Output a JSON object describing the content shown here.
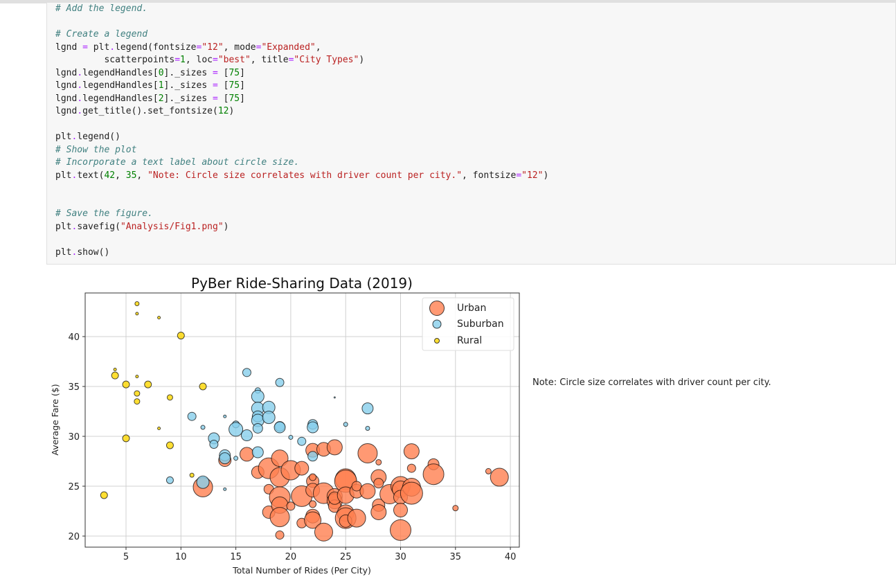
{
  "code_cell": {
    "lines": [
      {
        "type": "comment",
        "text": "# Add the legend."
      },
      {
        "type": "blank",
        "text": ""
      },
      {
        "type": "comment",
        "text": "# Create a legend"
      },
      {
        "type": "code",
        "text": "lgnd = plt.legend(fontsize=\"12\", mode=\"Expanded\","
      },
      {
        "type": "code",
        "text": "         scatterpoints=1, loc=\"best\", title=\"City Types\")"
      },
      {
        "type": "code",
        "text": "lgnd.legendHandles[0]._sizes = [75]"
      },
      {
        "type": "code",
        "text": "lgnd.legendHandles[1]._sizes = [75]"
      },
      {
        "type": "code",
        "text": "lgnd.legendHandles[2]._sizes = [75]"
      },
      {
        "type": "code",
        "text": "lgnd.get_title().set_fontsize(12)"
      },
      {
        "type": "blank",
        "text": ""
      },
      {
        "type": "code",
        "text": "plt.legend()"
      },
      {
        "type": "comment",
        "text": "# Show the plot"
      },
      {
        "type": "comment",
        "text": "# Incorporate a text label about circle size."
      },
      {
        "type": "code",
        "text": "plt.text(42, 35, \"Note: Circle size correlates with driver count per city.\", fontsize=\"12\")"
      },
      {
        "type": "blank",
        "text": ""
      },
      {
        "type": "blank",
        "text": ""
      },
      {
        "type": "comment",
        "text": "# Save the figure."
      },
      {
        "type": "code",
        "text": "plt.savefig(\"Analysis/Fig1.png\")"
      },
      {
        "type": "blank",
        "text": ""
      },
      {
        "type": "code",
        "text": "plt.show()"
      }
    ]
  },
  "note_text": "Note: Circle size correlates with driver count per city.",
  "colors": {
    "urban": "#FF7F50",
    "suburban": "#87CEEB",
    "rural": "#FFD700",
    "edge": "#000000",
    "grid": "#d0d0d0"
  },
  "chart_data": {
    "type": "scatter",
    "title": "PyBer Ride-Sharing Data (2019)",
    "xlabel": "Total Number of Rides (Per City)",
    "ylabel": "Average Fare ($)",
    "xlim": [
      1.3,
      40.8
    ],
    "ylim": [
      19,
      44.5
    ],
    "xticks": [
      5,
      10,
      15,
      20,
      25,
      30,
      35,
      40
    ],
    "yticks": [
      20,
      25,
      30,
      35,
      40
    ],
    "grid": true,
    "legend": {
      "position": "upper right",
      "entries": [
        "Urban",
        "Suburban",
        "Rural"
      ]
    },
    "series": [
      {
        "name": "Urban",
        "color": "#FF7F50",
        "points": [
          [
            12,
            24.9,
            14
          ],
          [
            14,
            27.6,
            9
          ],
          [
            16,
            28.2,
            10
          ],
          [
            17,
            26.4,
            9
          ],
          [
            18,
            26.8,
            15
          ],
          [
            18,
            22.4,
            9
          ],
          [
            18,
            24.7,
            7
          ],
          [
            19,
            27.8,
            12
          ],
          [
            19,
            25.9,
            14
          ],
          [
            19,
            23.9,
            15
          ],
          [
            19,
            23.1,
            12
          ],
          [
            19,
            21.9,
            14
          ],
          [
            19,
            20.1,
            6
          ],
          [
            20,
            26.6,
            14
          ],
          [
            20,
            23.0,
            6
          ],
          [
            21,
            26.8,
            10
          ],
          [
            21,
            24.0,
            15
          ],
          [
            21,
            21.3,
            7
          ],
          [
            22,
            28.6,
            10
          ],
          [
            22,
            25.5,
            9
          ],
          [
            22,
            24.6,
            10
          ],
          [
            22,
            23.2,
            5
          ],
          [
            22,
            22.0,
            10
          ],
          [
            22,
            21.6,
            12
          ],
          [
            22,
            25.9,
            5
          ],
          [
            23,
            28.7,
            10
          ],
          [
            23,
            24.3,
            15
          ],
          [
            23,
            20.4,
            13
          ],
          [
            24,
            28.9,
            11
          ],
          [
            24,
            24.0,
            11
          ],
          [
            24,
            23.5,
            11
          ],
          [
            24,
            23.0,
            9
          ],
          [
            24,
            23.8,
            9
          ],
          [
            25,
            25.7,
            15
          ],
          [
            25,
            25.5,
            16
          ],
          [
            25,
            24.1,
            12
          ],
          [
            25,
            22.3,
            12
          ],
          [
            25,
            21.8,
            15
          ],
          [
            25,
            21.5,
            9
          ],
          [
            26,
            24.5,
            10
          ],
          [
            26,
            21.8,
            13
          ],
          [
            26,
            25.0,
            7
          ],
          [
            27,
            28.3,
            14
          ],
          [
            27,
            24.5,
            11
          ],
          [
            28,
            27.4,
            4
          ],
          [
            28,
            25.9,
            11
          ],
          [
            28,
            25.3,
            7
          ],
          [
            28,
            23.1,
            9
          ],
          [
            28,
            22.4,
            11
          ],
          [
            29,
            24.2,
            14
          ],
          [
            30,
            25.0,
            14
          ],
          [
            30,
            24.7,
            12
          ],
          [
            30,
            23.9,
            10
          ],
          [
            30,
            22.6,
            10
          ],
          [
            30,
            20.6,
            15
          ],
          [
            31,
            28.5,
            11
          ],
          [
            31,
            26.8,
            6
          ],
          [
            31,
            24.9,
            13
          ],
          [
            31,
            24.3,
            16
          ],
          [
            33,
            27.2,
            8
          ],
          [
            33,
            26.2,
            15
          ],
          [
            35,
            22.8,
            4
          ],
          [
            38,
            26.5,
            4
          ],
          [
            39,
            25.9,
            13
          ]
        ]
      },
      {
        "name": "Suburban",
        "color": "#87CEEB",
        "points": [
          [
            9,
            25.6,
            5
          ],
          [
            11,
            32.0,
            6
          ],
          [
            12,
            30.9,
            3
          ],
          [
            12,
            25.4,
            9
          ],
          [
            13,
            29.8,
            8
          ],
          [
            13,
            29.2,
            6
          ],
          [
            14,
            32.0,
            2
          ],
          [
            14,
            28.1,
            8
          ],
          [
            14,
            27.8,
            8
          ],
          [
            14,
            24.7,
            2
          ],
          [
            15,
            31.2,
            5
          ],
          [
            15,
            30.7,
            10
          ],
          [
            15,
            27.8,
            3
          ],
          [
            16,
            36.4,
            6
          ],
          [
            16,
            30.1,
            8
          ],
          [
            17,
            34.6,
            4
          ],
          [
            17,
            34.0,
            9
          ],
          [
            17,
            32.8,
            9
          ],
          [
            17,
            32.0,
            8
          ],
          [
            17,
            31.6,
            9
          ],
          [
            17,
            30.8,
            7
          ],
          [
            17,
            28.4,
            8
          ],
          [
            18,
            32.9,
            9
          ],
          [
            18,
            31.9,
            9
          ],
          [
            19,
            35.4,
            6
          ],
          [
            19,
            31.0,
            7
          ],
          [
            19,
            30.9,
            8
          ],
          [
            20,
            29.9,
            3
          ],
          [
            21,
            29.5,
            6
          ],
          [
            22,
            31.2,
            7
          ],
          [
            22,
            30.9,
            8
          ],
          [
            22,
            28.0,
            7
          ],
          [
            24,
            33.9,
            1
          ],
          [
            25,
            31.2,
            3
          ],
          [
            27,
            32.8,
            8
          ],
          [
            27,
            30.8,
            3
          ]
        ]
      },
      {
        "name": "Rural",
        "color": "#FFD700",
        "points": [
          [
            3,
            24.1,
            5
          ],
          [
            4,
            36.7,
            2
          ],
          [
            4,
            36.1,
            5
          ],
          [
            5,
            35.2,
            5
          ],
          [
            5,
            29.8,
            5
          ],
          [
            6,
            43.3,
            3
          ],
          [
            6,
            42.3,
            2
          ],
          [
            6,
            36.0,
            2
          ],
          [
            6,
            34.3,
            4
          ],
          [
            6,
            33.5,
            4
          ],
          [
            7,
            35.2,
            5
          ],
          [
            8,
            41.9,
            2
          ],
          [
            8,
            30.8,
            2
          ],
          [
            9,
            33.9,
            4
          ],
          [
            9,
            29.1,
            5
          ],
          [
            10,
            40.1,
            5
          ],
          [
            11,
            26.1,
            3
          ],
          [
            12,
            35.0,
            5
          ]
        ]
      }
    ],
    "annotation": {
      "x": 42,
      "y": 35,
      "text": "Note: Circle size correlates with driver count per city."
    }
  }
}
